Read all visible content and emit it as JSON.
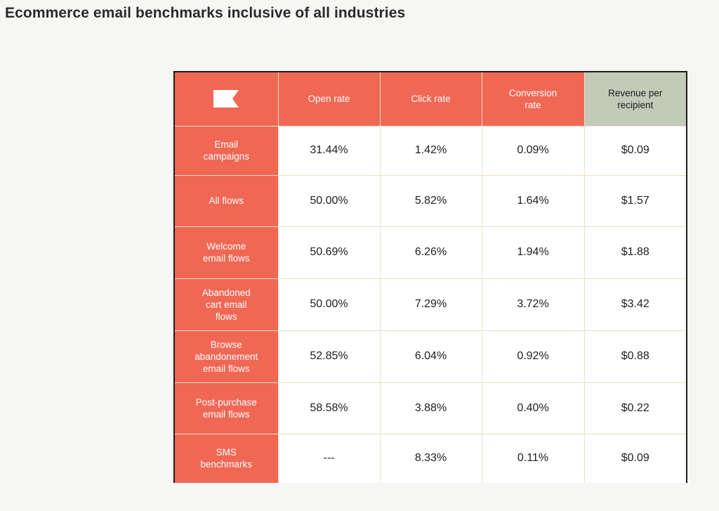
{
  "title": "Ecommerce email benchmarks inclusive of all industries",
  "colors": {
    "header_red": "#f06754",
    "header_accent_green": "#c1cbb8",
    "grid_line": "#eadfca",
    "frame": "#1c1c1c",
    "background": "#f6f6f4"
  },
  "chart_data": {
    "type": "table",
    "title": "Ecommerce email benchmarks inclusive of all industries",
    "columns": [
      "Open rate",
      "Click rate",
      "Conversion\nrate",
      "Revenue per\nrecipient"
    ],
    "highlighted_column": "Revenue per\nrecipient",
    "logo_icon": "flag-logo-icon",
    "rows": [
      {
        "label": "Email\ncampaigns",
        "values": [
          "31.44%",
          "1.42%",
          "0.09%",
          "$0.09"
        ]
      },
      {
        "label": "All flows",
        "values": [
          "50.00%",
          "5.82%",
          "1.64%",
          "$1.57"
        ]
      },
      {
        "label": "Welcome\nemail flows",
        "values": [
          "50.69%",
          "6.26%",
          "1.94%",
          "$1.88"
        ]
      },
      {
        "label": "Abandoned\ncart email\nflows",
        "values": [
          "50.00%",
          "7.29%",
          "3.72%",
          "$3.42"
        ]
      },
      {
        "label": "Browse\nabandonement\nemail flows",
        "values": [
          "52.85%",
          "6.04%",
          "0.92%",
          "$0.88"
        ]
      },
      {
        "label": "Post-purchase\nemail flows",
        "values": [
          "58.58%",
          "3.88%",
          "0.40%",
          "$0.22"
        ]
      },
      {
        "label": "SMS\nbenchmarks",
        "values": [
          "---",
          "8.33%",
          "0.11%",
          "$0.09"
        ]
      }
    ]
  }
}
